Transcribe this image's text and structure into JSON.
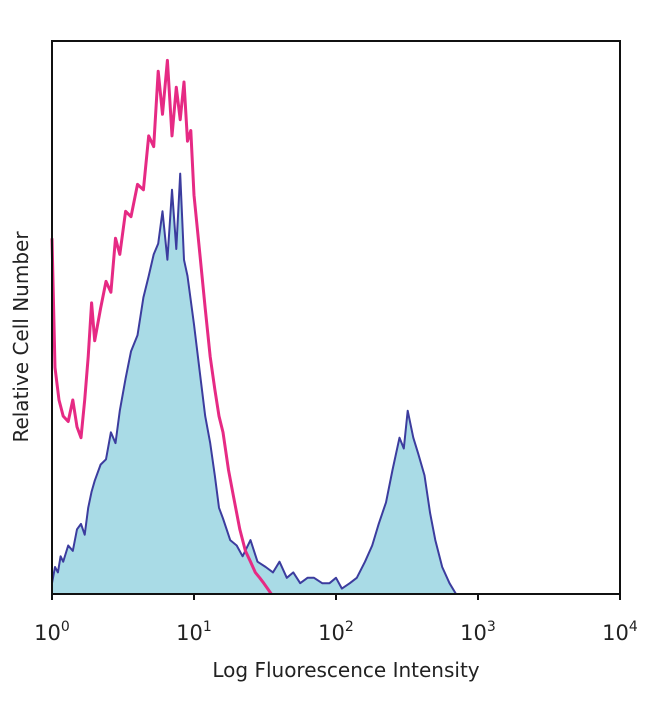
{
  "chart_data": {
    "type": "area",
    "title": "",
    "xlabel": "Log Fluorescence Intensity",
    "ylabel": "Relative Cell Number",
    "x_scale": "log",
    "xlim": [
      1,
      10000
    ],
    "ylim": [
      0,
      1
    ],
    "grid": false,
    "legend": "none",
    "x_ticks": [
      {
        "value": 1,
        "base": "10",
        "exp": "0"
      },
      {
        "value": 10,
        "base": "10",
        "exp": "1"
      },
      {
        "value": 100,
        "base": "10",
        "exp": "2"
      },
      {
        "value": 1000,
        "base": "10",
        "exp": "3"
      },
      {
        "value": 10000,
        "base": "10",
        "exp": "4"
      }
    ],
    "series": [
      {
        "color": "#e62a84",
        "style": "line",
        "x": [
          1,
          1.05,
          1.12,
          1.2,
          1.3,
          1.4,
          1.5,
          1.6,
          1.7,
          1.8,
          1.9,
          2.0,
          2.2,
          2.4,
          2.6,
          2.8,
          3.0,
          3.3,
          3.6,
          4.0,
          4.4,
          4.8,
          5.2,
          5.6,
          6.0,
          6.5,
          7.0,
          7.5,
          8.0,
          8.5,
          9.0,
          9.5,
          10.0,
          11.0,
          12.0,
          13.0,
          14.0,
          15.0,
          16.0,
          17.5,
          19.0,
          21.0,
          23.0,
          25.0,
          27.0,
          29.0,
          31.0,
          33.0,
          35.0
        ],
        "y": [
          0.66,
          0.42,
          0.36,
          0.33,
          0.32,
          0.36,
          0.31,
          0.29,
          0.36,
          0.44,
          0.54,
          0.47,
          0.53,
          0.58,
          0.56,
          0.66,
          0.63,
          0.71,
          0.7,
          0.76,
          0.75,
          0.85,
          0.83,
          0.97,
          0.89,
          0.99,
          0.85,
          0.94,
          0.88,
          0.95,
          0.84,
          0.86,
          0.74,
          0.63,
          0.53,
          0.44,
          0.38,
          0.33,
          0.3,
          0.23,
          0.18,
          0.12,
          0.08,
          0.06,
          0.04,
          0.03,
          0.02,
          0.01,
          0.0
        ]
      },
      {
        "color": "#3c3c9e",
        "fill": "#a9dbe6",
        "style": "filled",
        "x": [
          1,
          1.05,
          1.1,
          1.15,
          1.2,
          1.3,
          1.4,
          1.5,
          1.6,
          1.7,
          1.8,
          1.9,
          2.0,
          2.2,
          2.4,
          2.6,
          2.8,
          3.0,
          3.3,
          3.6,
          4.0,
          4.4,
          4.8,
          5.2,
          5.6,
          6.0,
          6.5,
          7.0,
          7.5,
          8.0,
          8.5,
          9.0,
          10.0,
          11.0,
          12.0,
          13.0,
          14.0,
          15.0,
          16.0,
          18.0,
          20.0,
          22.0,
          25.0,
          28.0,
          32.0,
          36.0,
          40.0,
          45.0,
          50.0,
          56.0,
          63.0,
          70.0,
          80.0,
          90.0,
          100.0,
          110.0,
          125.0,
          140.0,
          160.0,
          180.0,
          200.0,
          225.0,
          250.0,
          280.0,
          300.0,
          320.0,
          350.0,
          380.0,
          420.0,
          460.0,
          500.0,
          560.0,
          630.0,
          700.0
        ],
        "y": [
          0.02,
          0.05,
          0.04,
          0.07,
          0.06,
          0.09,
          0.08,
          0.12,
          0.13,
          0.11,
          0.16,
          0.19,
          0.21,
          0.24,
          0.25,
          0.3,
          0.28,
          0.34,
          0.4,
          0.45,
          0.48,
          0.55,
          0.59,
          0.63,
          0.65,
          0.71,
          0.62,
          0.75,
          0.64,
          0.78,
          0.62,
          0.59,
          0.5,
          0.41,
          0.33,
          0.28,
          0.22,
          0.16,
          0.14,
          0.1,
          0.09,
          0.07,
          0.1,
          0.06,
          0.05,
          0.04,
          0.06,
          0.03,
          0.04,
          0.02,
          0.03,
          0.03,
          0.02,
          0.02,
          0.03,
          0.01,
          0.02,
          0.03,
          0.06,
          0.09,
          0.13,
          0.17,
          0.23,
          0.29,
          0.27,
          0.34,
          0.29,
          0.26,
          0.22,
          0.15,
          0.1,
          0.05,
          0.02,
          0.0
        ]
      }
    ]
  }
}
